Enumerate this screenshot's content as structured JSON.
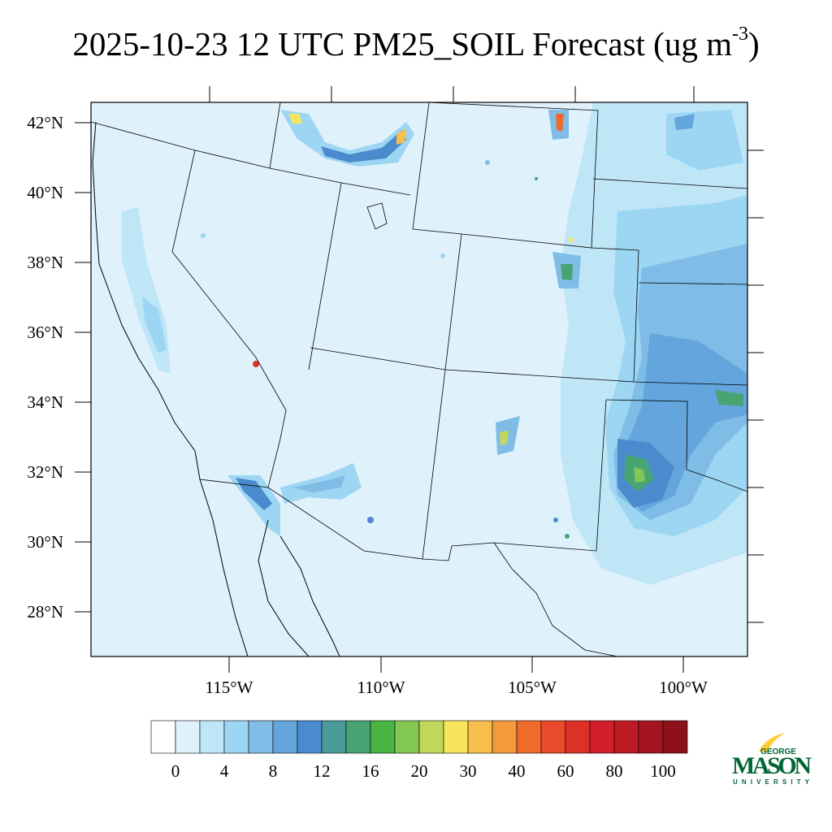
{
  "title": {
    "main": "2025-10-23 12 UTC PM25_SOIL Forecast (ug m",
    "exponent": "-3",
    "close": ")"
  },
  "map": {
    "lat_labels": [
      "42°N",
      "40°N",
      "38°N",
      "36°N",
      "34°N",
      "32°N",
      "30°N",
      "28°N"
    ],
    "lon_labels": [
      "115°W",
      "110°W",
      "105°W",
      "100°W"
    ]
  },
  "colorbar": {
    "colors": [
      "#ffffff",
      "#dff1fb",
      "#bfe6f7",
      "#9cd6f2",
      "#7fbde6",
      "#63a5dc",
      "#4b8bcd",
      "#4a9a9a",
      "#48a473",
      "#48b545",
      "#82c653",
      "#c2d85a",
      "#f7e65c",
      "#f7be4b",
      "#f39a3b",
      "#ee6b2c",
      "#e84a2b",
      "#dd3127",
      "#d11f2b",
      "#bd1a24",
      "#a5151f",
      "#8c111a"
    ],
    "labels": [
      "0",
      "4",
      "8",
      "12",
      "16",
      "20",
      "30",
      "40",
      "60",
      "80",
      "100"
    ],
    "zero_color": "#ffffff",
    "background_color": "#dff1fb"
  },
  "logo": {
    "top": "GEORGE",
    "main": "MASON",
    "bottom": "UNIVERSITY",
    "green": "#006633",
    "gold": "#ffcc33"
  }
}
